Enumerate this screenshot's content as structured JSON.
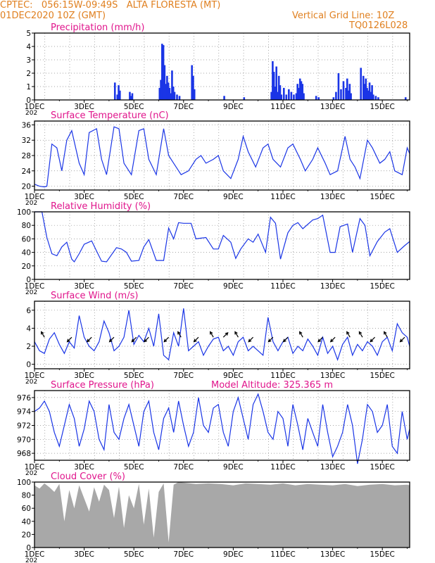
{
  "header": {
    "left1": "CPTEC:   056:15W-09:49S   ALTA FLORESTA (MT)",
    "left2": "01DEC2020 10Z (GMT)",
    "right1": "Vertical Grid Line: 10Z",
    "right2": "TQ0126L028",
    "color": "#e08020"
  },
  "colors": {
    "title": "#e0158c",
    "series": "#1a35e6",
    "cloud": "#a8a8a8",
    "grid": "#888888"
  },
  "x_axis": {
    "ticks": [
      "1DEC",
      "3DEC",
      "5DEC",
      "7DEC",
      "9DEC",
      "11DEC",
      "13DEC",
      "15DEC"
    ],
    "year_fragment": "202"
  },
  "panels": {
    "precip": {
      "title": "Precipitation (mm/h)"
    },
    "temp": {
      "title": "Surface Temperature (nC)"
    },
    "rh": {
      "title": "Relative Humidity (%)"
    },
    "wind": {
      "title": "Surface Wind (m/s)"
    },
    "pres": {
      "title": "Surface Pressure (hPa)",
      "extra": "Model Altitude: 325.365 m"
    },
    "cloud": {
      "title": "Cloud Cover (%)"
    }
  },
  "chart_data": [
    {
      "id": "precip",
      "type": "bar",
      "ylabel": "Precipitation (mm/h)",
      "xlim_days": [
        1,
        16.1
      ],
      "ylim": [
        0,
        5
      ],
      "yticks": [
        0,
        1,
        2,
        3,
        4,
        5
      ],
      "grid": true,
      "x": [
        4.2,
        4.3,
        4.35,
        4.4,
        4.8,
        4.85,
        4.9,
        6.0,
        6.05,
        6.1,
        6.15,
        6.2,
        6.25,
        6.3,
        6.35,
        6.4,
        6.45,
        6.5,
        6.55,
        6.6,
        6.7,
        6.8,
        7.3,
        7.35,
        7.4,
        8.6,
        9.4,
        10.5,
        10.55,
        10.6,
        10.65,
        10.7,
        10.75,
        10.8,
        10.85,
        10.9,
        11.0,
        11.1,
        11.2,
        11.3,
        11.4,
        11.5,
        11.55,
        11.6,
        11.65,
        11.7,
        11.75,
        11.8,
        12.3,
        12.4,
        13.0,
        13.1,
        13.2,
        13.3,
        13.4,
        13.5,
        13.55,
        13.6,
        13.65,
        13.7,
        14.1,
        14.2,
        14.25,
        14.3,
        14.35,
        14.4,
        14.45,
        14.5,
        14.55,
        14.6,
        14.7,
        14.8,
        15.9
      ],
      "values": [
        1.3,
        0.4,
        1.1,
        0.7,
        0.6,
        0.3,
        0.5,
        0.9,
        1.5,
        4.2,
        4.1,
        2.6,
        1.2,
        1.8,
        1.3,
        0.9,
        0.5,
        2.2,
        1.0,
        0.6,
        0.4,
        0.3,
        2.6,
        1.8,
        0.8,
        0.3,
        0.2,
        0.6,
        2.9,
        2.1,
        1.0,
        2.5,
        0.6,
        1.8,
        1.1,
        0.4,
        0.9,
        0.4,
        0.8,
        0.6,
        0.4,
        0.5,
        1.2,
        0.9,
        1.6,
        1.4,
        1.2,
        0.5,
        0.3,
        0.2,
        0.2,
        0.6,
        2.0,
        0.8,
        1.4,
        0.9,
        1.6,
        0.7,
        1.2,
        0.5,
        2.4,
        1.8,
        1.2,
        1.6,
        0.9,
        0.7,
        1.3,
        0.6,
        1.1,
        0.4,
        0.3,
        0.2,
        0.2
      ]
    },
    {
      "id": "temp",
      "type": "line",
      "ylabel": "Surface Temperature (nC)",
      "xlim_days": [
        1,
        16.1
      ],
      "ylim": [
        19,
        37
      ],
      "yticks": [
        20,
        24,
        28,
        32,
        36
      ],
      "grid": true,
      "x": [
        1.0,
        1.2,
        1.4,
        1.5,
        1.7,
        1.9,
        2.1,
        2.3,
        2.5,
        2.8,
        3.0,
        3.2,
        3.5,
        3.7,
        3.9,
        4.2,
        4.4,
        4.6,
        4.9,
        5.2,
        5.4,
        5.6,
        5.9,
        6.2,
        6.4,
        6.6,
        6.9,
        7.2,
        7.5,
        7.7,
        7.9,
        8.2,
        8.4,
        8.6,
        8.9,
        9.2,
        9.4,
        9.6,
        9.9,
        10.2,
        10.4,
        10.6,
        10.9,
        11.2,
        11.4,
        11.7,
        11.9,
        12.2,
        12.4,
        12.7,
        12.9,
        13.2,
        13.5,
        13.7,
        13.9,
        14.1,
        14.4,
        14.6,
        14.9,
        15.1,
        15.3,
        15.5,
        15.8,
        16.0,
        16.1
      ],
      "values": [
        20.5,
        20,
        19.8,
        20,
        31,
        30,
        24,
        32,
        34.5,
        26,
        23,
        34,
        35,
        27,
        23,
        35.5,
        35,
        26,
        23,
        34.5,
        35,
        27,
        23,
        35,
        28,
        26,
        23,
        24,
        27,
        28,
        26,
        27,
        28,
        24,
        22,
        27,
        33,
        29,
        25,
        30,
        31,
        27,
        25,
        30,
        31,
        27,
        24,
        27,
        30,
        26,
        23,
        24,
        33,
        27,
        25,
        22,
        32,
        30,
        26,
        27,
        29,
        24,
        23,
        30,
        28.5
      ]
    },
    {
      "id": "rh",
      "type": "line",
      "ylabel": "Relative Humidity (%)",
      "xlim_days": [
        1,
        16.1
      ],
      "ylim": [
        0,
        100
      ],
      "yticks": [
        0,
        20,
        40,
        60,
        80,
        100
      ],
      "grid": true,
      "x": [
        1.0,
        1.3,
        1.5,
        1.7,
        1.9,
        2.1,
        2.3,
        2.5,
        2.6,
        2.8,
        3.0,
        3.3,
        3.5,
        3.7,
        3.9,
        4.3,
        4.5,
        4.7,
        4.9,
        5.2,
        5.4,
        5.6,
        5.9,
        6.2,
        6.4,
        6.6,
        6.8,
        7.0,
        7.3,
        7.5,
        7.7,
        7.9,
        8.2,
        8.4,
        8.6,
        8.9,
        9.1,
        9.3,
        9.6,
        9.8,
        10.0,
        10.3,
        10.5,
        10.7,
        10.9,
        11.2,
        11.4,
        11.6,
        11.8,
        12.2,
        12.4,
        12.6,
        12.9,
        13.1,
        13.3,
        13.6,
        13.8,
        14.1,
        14.3,
        14.5,
        14.8,
        15.1,
        15.3,
        15.6,
        15.9,
        16.1
      ],
      "values": [
        100,
        100,
        62,
        38,
        35,
        48,
        55,
        30,
        26,
        38,
        52,
        57,
        42,
        27,
        26,
        47,
        45,
        40,
        27,
        28,
        48,
        59,
        28,
        28,
        76,
        60,
        84,
        83,
        83,
        60,
        61,
        62,
        45,
        45,
        65,
        55,
        31,
        45,
        60,
        55,
        67,
        40,
        92,
        83,
        30,
        69,
        80,
        84,
        75,
        88,
        90,
        95,
        40,
        40,
        78,
        82,
        40,
        90,
        80,
        35,
        56,
        70,
        75,
        40,
        50,
        56
      ]
    },
    {
      "id": "wind",
      "type": "line",
      "ylabel": "Surface Wind (m/s)",
      "xlim_days": [
        1,
        16.1
      ],
      "ylim": [
        -0.5,
        7
      ],
      "yticks": [
        0,
        2,
        4,
        6
      ],
      "grid": true,
      "x": [
        1.0,
        1.2,
        1.4,
        1.6,
        1.8,
        2.0,
        2.2,
        2.4,
        2.6,
        2.8,
        3.0,
        3.2,
        3.4,
        3.6,
        3.8,
        4.0,
        4.2,
        4.4,
        4.6,
        4.8,
        5.0,
        5.2,
        5.4,
        5.6,
        5.8,
        6.0,
        6.2,
        6.4,
        6.6,
        6.8,
        7.0,
        7.2,
        7.4,
        7.6,
        7.8,
        8.0,
        8.2,
        8.4,
        8.6,
        8.8,
        9.0,
        9.2,
        9.4,
        9.6,
        9.8,
        10.0,
        10.2,
        10.4,
        10.6,
        10.8,
        11.0,
        11.2,
        11.4,
        11.6,
        11.8,
        12.0,
        12.2,
        12.4,
        12.6,
        12.8,
        13.0,
        13.2,
        13.4,
        13.6,
        13.8,
        14.0,
        14.2,
        14.4,
        14.6,
        14.8,
        15.0,
        15.2,
        15.4,
        15.6,
        15.8,
        16.0,
        16.1
      ],
      "values": [
        2.5,
        1.5,
        1.2,
        2.8,
        3.5,
        2.2,
        1.2,
        2.5,
        1.8,
        5.4,
        3.0,
        2.0,
        1.5,
        2.5,
        4.8,
        3.5,
        1.5,
        2.0,
        3.0,
        6.0,
        2.2,
        3.2,
        2.5,
        4.0,
        2.0,
        5.6,
        1.0,
        0.5,
        3.5,
        2.0,
        6.2,
        1.5,
        2.0,
        2.5,
        1.0,
        2.0,
        2.8,
        3.0,
        1.5,
        2.0,
        1.0,
        2.5,
        3.0,
        1.5,
        2.0,
        1.5,
        1.0,
        5.2,
        2.5,
        1.5,
        2.5,
        3.0,
        1.2,
        2.0,
        1.5,
        2.8,
        2.0,
        1.0,
        3.0,
        1.2,
        2.0,
        0.5,
        2.2,
        3.0,
        1.0,
        2.2,
        1.5,
        2.5,
        2.0,
        1.0,
        2.5,
        3.0,
        1.5,
        4.5,
        3.5,
        3.0,
        2.0
      ],
      "arrows_x": [
        1.4,
        2.5,
        3.3,
        4.2,
        5.1,
        5.6,
        6.4,
        6.9,
        7.6,
        8.2,
        8.6,
        9.2,
        9.8,
        10.6,
        11.2,
        11.8,
        12.6,
        13.1,
        13.7,
        14.2,
        14.7,
        15.2,
        15.9
      ],
      "arrows_dir_deg": [
        120,
        225,
        225,
        225,
        225,
        225,
        225,
        120,
        225,
        120,
        45,
        120,
        225,
        225,
        225,
        120,
        225,
        225,
        120,
        120,
        225,
        120,
        225
      ]
    },
    {
      "id": "pres",
      "type": "line",
      "ylabel": "Surface Pressure (hPa)",
      "xlim_days": [
        1,
        16.1
      ],
      "ylim": [
        967,
        977
      ],
      "yticks": [
        968,
        970,
        972,
        974,
        976
      ],
      "grid": true,
      "x": [
        1.0,
        1.2,
        1.4,
        1.6,
        1.8,
        2.0,
        2.2,
        2.4,
        2.6,
        2.8,
        3.0,
        3.2,
        3.4,
        3.6,
        3.8,
        4.0,
        4.2,
        4.4,
        4.6,
        4.8,
        5.0,
        5.2,
        5.4,
        5.6,
        5.8,
        6.0,
        6.2,
        6.4,
        6.6,
        6.8,
        7.0,
        7.2,
        7.4,
        7.6,
        7.8,
        8.0,
        8.2,
        8.4,
        8.6,
        8.8,
        9.0,
        9.2,
        9.4,
        9.6,
        9.8,
        10.0,
        10.2,
        10.4,
        10.6,
        10.8,
        11.0,
        11.2,
        11.4,
        11.6,
        11.8,
        12.0,
        12.2,
        12.4,
        12.6,
        12.8,
        13.0,
        13.2,
        13.4,
        13.6,
        13.8,
        14.0,
        14.2,
        14.4,
        14.6,
        14.8,
        15.0,
        15.2,
        15.4,
        15.6,
        15.8,
        16.0,
        16.1
      ],
      "values": [
        974,
        974.5,
        975.5,
        974,
        971,
        969,
        972,
        975,
        973,
        969,
        971.5,
        975.5,
        974,
        970,
        968.5,
        975,
        971,
        970,
        973,
        975,
        972,
        969,
        974,
        975.5,
        971,
        968.5,
        973,
        974.5,
        971,
        975.5,
        972,
        969,
        971,
        976,
        972,
        971,
        974.5,
        975,
        971,
        969,
        974,
        976,
        973,
        970,
        975,
        976.5,
        974,
        971,
        970,
        974,
        973,
        969,
        975,
        972,
        968.5,
        973,
        971,
        969,
        975,
        971,
        967.5,
        969,
        971,
        975,
        972,
        966.5,
        970,
        975,
        974,
        971,
        972,
        975,
        969,
        968,
        974,
        970,
        971.5
      ]
    },
    {
      "id": "cloud",
      "type": "area",
      "ylabel": "Cloud Cover (%)",
      "xlim_days": [
        1,
        16.1
      ],
      "ylim": [
        0,
        100
      ],
      "yticks": [
        0,
        20,
        40,
        60,
        80,
        100
      ],
      "grid": false,
      "x": [
        1.0,
        1.2,
        1.4,
        1.6,
        1.8,
        2.0,
        2.2,
        2.4,
        2.6,
        2.8,
        3.0,
        3.2,
        3.4,
        3.6,
        3.8,
        4.0,
        4.2,
        4.4,
        4.6,
        4.8,
        5.0,
        5.2,
        5.4,
        5.6,
        5.8,
        6.0,
        6.2,
        6.4,
        6.6,
        6.8,
        7.0,
        7.5,
        8.0,
        8.5,
        9.0,
        9.5,
        10.0,
        10.5,
        11.0,
        11.5,
        12.0,
        12.5,
        13.0,
        13.5,
        14.0,
        14.5,
        15.0,
        15.5,
        16.0,
        16.1
      ],
      "values": [
        95,
        90,
        98,
        92,
        85,
        97,
        40,
        88,
        60,
        95,
        75,
        55,
        92,
        70,
        96,
        88,
        45,
        93,
        30,
        80,
        60,
        97,
        35,
        90,
        15,
        85,
        98,
        8,
        96,
        100,
        99,
        97,
        98,
        97,
        95,
        98,
        97,
        96,
        98,
        95,
        97,
        96,
        95,
        97,
        94,
        96,
        97,
        95,
        96,
        95
      ]
    }
  ]
}
